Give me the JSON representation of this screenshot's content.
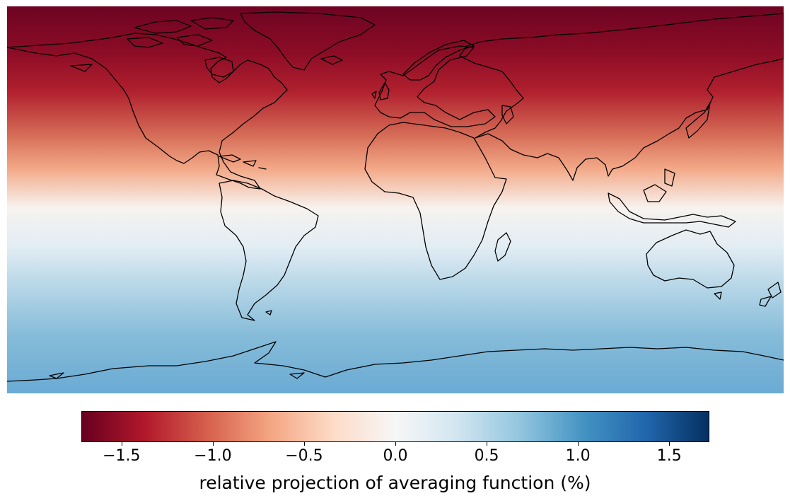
{
  "map": {
    "projection": "equirectangular",
    "field": "relative projection of averaging function (%)",
    "colormap": "RdBu",
    "coastlines": true,
    "gradient_by_latitude": [
      {
        "lat": 90,
        "value": -1.65
      },
      {
        "lat": 70,
        "value": -1.55
      },
      {
        "lat": 50,
        "value": -1.35
      },
      {
        "lat": 30,
        "value": -1.0
      },
      {
        "lat": 10,
        "value": -0.45
      },
      {
        "lat": 0,
        "value": 0.0
      },
      {
        "lat": -10,
        "value": 0.2
      },
      {
        "lat": -30,
        "value": 0.4
      },
      {
        "lat": -50,
        "value": 0.6
      },
      {
        "lat": -70,
        "value": 0.75
      },
      {
        "lat": -90,
        "value": 0.8
      }
    ]
  },
  "colorbar": {
    "min": -1.72,
    "max": 1.72,
    "stops": [
      "#67001f",
      "#b2182b",
      "#d6604d",
      "#f4a582",
      "#fddbc7",
      "#f7f7f7",
      "#d1e5f0",
      "#92c5de",
      "#4393c3",
      "#2166ac",
      "#053061"
    ],
    "ticks": [
      "−1.5",
      "−1.0",
      "−0.5",
      "0.0",
      "0.5",
      "1.0",
      "1.5"
    ],
    "tick_values": [
      -1.5,
      -1.0,
      -0.5,
      0.0,
      0.5,
      1.0,
      1.5
    ],
    "label": "relative projection of averaging function (%)"
  }
}
